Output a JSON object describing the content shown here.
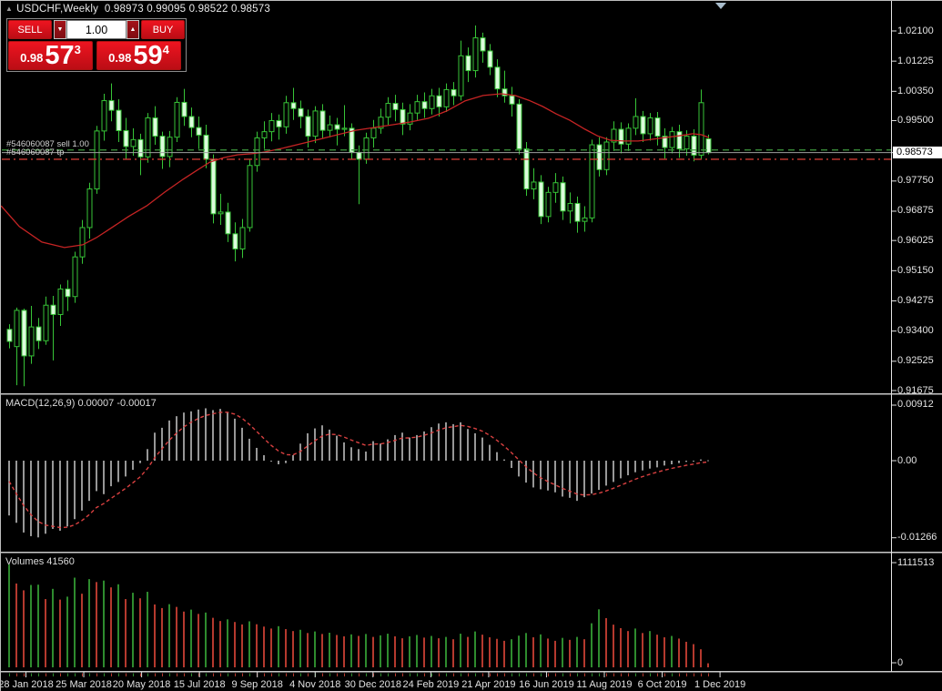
{
  "window": {
    "marker_glyph": "▲",
    "symbol_title": "USDCHF,Weekly",
    "ohlc_line": "0.98973 0.99095 0.98522 0.98573"
  },
  "trade_panel": {
    "sell_label": "SELL",
    "buy_label": "BUY",
    "volume_value": "1.00",
    "vol_down_glyph": "▼",
    "vol_up_glyph": "▲",
    "sell_price": {
      "prefix": "0.98",
      "big": "57",
      "sup": "3"
    },
    "buy_price": {
      "prefix": "0.98",
      "big": "59",
      "sup": "4"
    }
  },
  "order_labels": {
    "sell": "#546060087 sell 1.00",
    "tp": "#546060087 tp"
  },
  "indicator_labels": {
    "macd_name": "MACD(12,26,9)",
    "macd_value": "0.00007",
    "macd_signal": "-0.00017",
    "volumes_name": "Volumes",
    "volumes_value": "41560"
  },
  "axes": {
    "price_labels": [
      "1.02100",
      "1.01225",
      "1.00350",
      "0.99500",
      "0.97750",
      "0.96875",
      "0.96025",
      "0.95150",
      "0.94275",
      "0.93400",
      "0.92525",
      "0.91675"
    ],
    "current_price": "0.98573",
    "macd_labels": [
      "0.00912",
      "0.00",
      "-0.01266"
    ],
    "volume_labels": [
      "1111513",
      "0"
    ],
    "date_labels": [
      "28 Jan 2018",
      "25 Mar 2018",
      "20 May 2018",
      "15 Jul 2018",
      "9 Sep 2018",
      "4 Nov 2018",
      "30 Dec 2018",
      "24 Feb 2019",
      "21 Apr 2019",
      "16 Jun 2019",
      "11 Aug 2019",
      "6 Oct 2019",
      "1 Dec 2019"
    ]
  },
  "colors": {
    "candle_line": "#37c437",
    "bull_fill": "#000000",
    "bear_fill": "#dcfbdc",
    "ma": "#c62424",
    "macd_hist": "#c9c9c9",
    "macd_signal": "#d84040",
    "vol_up": "#2e8b2e",
    "vol_down": "#b5392e",
    "sell_line": "#3f9b3f",
    "tp_line": "#cc3b33",
    "bid_line": "#9e9e9e",
    "separator": "#c9c9c9",
    "axis_text": "#e2e2e2",
    "button_red": "#d6101c",
    "shift_marker": "#a9bccb"
  },
  "chart_data": {
    "type": "candlestick",
    "title": "USDCHF,Weekly",
    "timeframe": "W1",
    "x_range": [
      "14 Jan 2018",
      "1 Dec 2019"
    ],
    "price_axis_shown": [
      0.91675,
      1.021
    ],
    "macd_axis_shown": [
      -0.01266,
      0.00912
    ],
    "volumes_axis_max": 1111513,
    "order_lines": {
      "sell_price": 0.9865,
      "tp_price": 0.9838,
      "bid_price": 0.98573
    },
    "candles": [
      [
        0.9345,
        0.936,
        0.929,
        0.931
      ],
      [
        0.9295,
        0.9408,
        0.9183,
        0.94
      ],
      [
        0.94,
        0.9405,
        0.918,
        0.9268
      ],
      [
        0.9268,
        0.9413,
        0.9245,
        0.9352
      ],
      [
        0.9352,
        0.9378,
        0.9288,
        0.9312
      ],
      [
        0.9312,
        0.944,
        0.93,
        0.9415
      ],
      [
        0.9415,
        0.9442,
        0.9255,
        0.9388
      ],
      [
        0.9388,
        0.9475,
        0.9355,
        0.9462
      ],
      [
        0.9462,
        0.9488,
        0.9398,
        0.944
      ],
      [
        0.944,
        0.957,
        0.9422,
        0.9555
      ],
      [
        0.9555,
        0.9662,
        0.9535,
        0.964
      ],
      [
        0.964,
        0.977,
        0.9608,
        0.9752
      ],
      [
        0.9752,
        0.9935,
        0.9738,
        0.992
      ],
      [
        0.992,
        1.0028,
        0.9892,
        1.0008
      ],
      [
        1.0008,
        1.0058,
        0.9948,
        0.998
      ],
      [
        0.998,
        1.0012,
        0.9888,
        0.9921
      ],
      [
        0.9921,
        0.9958,
        0.9838,
        0.9875
      ],
      [
        0.9875,
        0.9928,
        0.9848,
        0.9895
      ],
      [
        0.9895,
        0.9912,
        0.9792,
        0.9845
      ],
      [
        0.9845,
        0.9972,
        0.9828,
        0.9958
      ],
      [
        0.9958,
        0.9992,
        0.988,
        0.9905
      ],
      [
        0.9905,
        0.9918,
        0.981,
        0.9846
      ],
      [
        0.9846,
        0.992,
        0.9815,
        0.9902
      ],
      [
        0.9902,
        1.0018,
        0.9888,
        1.0003
      ],
      [
        1.0003,
        1.0042,
        0.9935,
        0.9962
      ],
      [
        0.9962,
        0.9988,
        0.9902,
        0.993
      ],
      [
        0.993,
        0.9962,
        0.9868,
        0.9908
      ],
      [
        0.9908,
        0.9938,
        0.9812,
        0.9838
      ],
      [
        0.9838,
        0.9852,
        0.9652,
        0.968
      ],
      [
        0.968,
        0.9738,
        0.9648,
        0.9685
      ],
      [
        0.9685,
        0.9712,
        0.9598,
        0.9622
      ],
      [
        0.9622,
        0.9655,
        0.9542,
        0.9578
      ],
      [
        0.9578,
        0.9665,
        0.9552,
        0.964
      ],
      [
        0.964,
        0.9838,
        0.9628,
        0.982
      ],
      [
        0.982,
        0.9918,
        0.9802,
        0.99
      ],
      [
        0.99,
        0.9948,
        0.9868,
        0.9918
      ],
      [
        0.9918,
        0.9972,
        0.989,
        0.995
      ],
      [
        0.995,
        0.9968,
        0.9895,
        0.9932
      ],
      [
        0.9932,
        1.0022,
        0.9912,
        1.0002
      ],
      [
        1.0002,
        1.0045,
        0.9952,
        0.9985
      ],
      [
        0.9985,
        1.0008,
        0.9928,
        0.9962
      ],
      [
        0.9962,
        0.9982,
        0.9872,
        0.9905
      ],
      [
        0.9905,
        0.9992,
        0.9885,
        0.9978
      ],
      [
        0.9978,
        0.9998,
        0.9898,
        0.9922
      ],
      [
        0.9922,
        0.9965,
        0.9902,
        0.9938
      ],
      [
        0.9938,
        0.9958,
        0.9878,
        0.9925
      ],
      [
        0.9925,
        0.9995,
        0.9905,
        0.9928
      ],
      [
        0.9928,
        0.9942,
        0.9838,
        0.9858
      ],
      [
        0.9858,
        0.9878,
        0.9708,
        0.9838
      ],
      [
        0.9838,
        0.9915,
        0.9825,
        0.99
      ],
      [
        0.99,
        0.9952,
        0.9872,
        0.9928
      ],
      [
        0.9928,
        0.9985,
        0.9912,
        0.996
      ],
      [
        0.996,
        1.0018,
        0.9938,
        1.0
      ],
      [
        1.0,
        1.0025,
        0.9948,
        0.9982
      ],
      [
        0.9982,
        1.0002,
        0.9908,
        0.994
      ],
      [
        0.994,
        0.9998,
        0.9922,
        0.9972
      ],
      [
        0.9972,
        1.0025,
        0.9952,
        1.0005
      ],
      [
        1.0005,
        1.0032,
        0.9958,
        0.9985
      ],
      [
        0.9985,
        1.0042,
        0.9968,
        1.0022
      ],
      [
        1.0022,
        1.0045,
        0.9962,
        0.999
      ],
      [
        0.999,
        1.0058,
        0.9975,
        1.004
      ],
      [
        1.004,
        1.0062,
        0.9995,
        1.0022
      ],
      [
        1.0022,
        1.0182,
        1.0008,
        1.0138
      ],
      [
        1.0138,
        1.0162,
        1.0062,
        1.0095
      ],
      [
        1.0095,
        1.0226,
        1.0075,
        1.019
      ],
      [
        1.019,
        1.0205,
        1.0118,
        1.0152
      ],
      [
        1.0152,
        1.0172,
        1.0082,
        1.0105
      ],
      [
        1.0105,
        1.0128,
        1.0018,
        1.0042
      ],
      [
        1.0042,
        1.0095,
        1.0002,
        1.0022
      ],
      [
        1.0022,
        1.0048,
        0.9962,
        0.9998
      ],
      [
        0.9998,
        1.0012,
        0.9852,
        0.9868
      ],
      [
        0.9868,
        0.9888,
        0.9732,
        0.9752
      ],
      [
        0.9752,
        0.9812,
        0.9722,
        0.9772
      ],
      [
        0.9772,
        0.9792,
        0.965,
        0.9672
      ],
      [
        0.9672,
        0.9758,
        0.9655,
        0.9742
      ],
      [
        0.9742,
        0.9798,
        0.9712,
        0.977
      ],
      [
        0.977,
        0.9788,
        0.9662,
        0.9688
      ],
      [
        0.9688,
        0.9742,
        0.9652,
        0.971
      ],
      [
        0.971,
        0.973,
        0.9625,
        0.9658
      ],
      [
        0.9658,
        0.9702,
        0.9628,
        0.9668
      ],
      [
        0.9668,
        0.9895,
        0.9655,
        0.988
      ],
      [
        0.988,
        0.9902,
        0.9788,
        0.9808
      ],
      [
        0.9808,
        0.9902,
        0.9792,
        0.9888
      ],
      [
        0.9888,
        0.9948,
        0.9862,
        0.9925
      ],
      [
        0.9925,
        0.9945,
        0.9855,
        0.9882
      ],
      [
        0.9882,
        0.9942,
        0.9862,
        0.9928
      ],
      [
        0.9928,
        1.0015,
        0.9908,
        0.9962
      ],
      [
        0.9962,
        0.9978,
        0.9888,
        0.9912
      ],
      [
        0.9912,
        0.9972,
        0.9892,
        0.9958
      ],
      [
        0.9958,
        0.9975,
        0.9878,
        0.9905
      ],
      [
        0.9905,
        0.9928,
        0.984,
        0.9872
      ],
      [
        0.9872,
        0.9932,
        0.9855,
        0.9918
      ],
      [
        0.9918,
        0.9938,
        0.9842,
        0.9868
      ],
      [
        0.9868,
        0.9922,
        0.9848,
        0.9905
      ],
      [
        0.9905,
        0.9925,
        0.9832,
        0.985
      ],
      [
        0.985,
        1.004,
        0.9838,
        1.0002
      ],
      [
        0.98973,
        0.99095,
        0.98522,
        0.98573
      ]
    ],
    "ma_line": [
      [
        -1.1,
        0.9703
      ],
      [
        1.4,
        0.9643
      ],
      [
        4.5,
        0.9598
      ],
      [
        7.6,
        0.9582
      ],
      [
        10.1,
        0.959
      ],
      [
        12,
        0.9611
      ],
      [
        13.9,
        0.9637
      ],
      [
        16.4,
        0.9672
      ],
      [
        18.9,
        0.9703
      ],
      [
        21.4,
        0.9743
      ],
      [
        23.9,
        0.978
      ],
      [
        25.8,
        0.9806
      ],
      [
        27.6,
        0.983
      ],
      [
        29.5,
        0.9843
      ],
      [
        31.4,
        0.9851
      ],
      [
        33.3,
        0.9854
      ],
      [
        35.1,
        0.9859
      ],
      [
        37.6,
        0.987
      ],
      [
        40.1,
        0.9883
      ],
      [
        42.6,
        0.9896
      ],
      [
        45.1,
        0.9909
      ],
      [
        47.6,
        0.9922
      ],
      [
        50.1,
        0.993
      ],
      [
        52.6,
        0.9938
      ],
      [
        55.1,
        0.9946
      ],
      [
        57.6,
        0.9957
      ],
      [
        60.1,
        0.9978
      ],
      [
        62.6,
        1.0007
      ],
      [
        65.1,
        1.0023
      ],
      [
        67.6,
        1.0028
      ],
      [
        69.5,
        1.0023
      ],
      [
        71.4,
        1.0009
      ],
      [
        73.3,
        0.9991
      ],
      [
        75.1,
        0.997
      ],
      [
        77,
        0.9951
      ],
      [
        79.1,
        0.9925
      ],
      [
        80.8,
        0.9906
      ],
      [
        82.6,
        0.9893
      ],
      [
        84.5,
        0.9891
      ],
      [
        86.4,
        0.9891
      ],
      [
        88.3,
        0.9896
      ],
      [
        90.1,
        0.9901
      ],
      [
        92,
        0.9906
      ],
      [
        93.9,
        0.9912
      ],
      [
        95.1,
        0.9909
      ],
      [
        96.1,
        0.9901
      ]
    ],
    "macd_hist": [
      -0.009,
      -0.0102,
      -0.0118,
      -0.0124,
      -0.0126,
      -0.012,
      -0.0112,
      -0.0115,
      -0.0108,
      -0.0096,
      -0.0082,
      -0.0066,
      -0.005,
      -0.0055,
      -0.0042,
      -0.0035,
      -0.0026,
      -0.0015,
      -0.0004,
      0.0019,
      0.0046,
      0.0054,
      0.0066,
      0.0073,
      0.0079,
      0.0081,
      0.0084,
      0.0086,
      0.0083,
      0.0085,
      0.008,
      0.0069,
      0.0054,
      0.0036,
      0.0021,
      0.0009,
      -0.0001,
      -0.0006,
      -0.0004,
      0.0009,
      0.0028,
      0.0045,
      0.0053,
      0.0058,
      0.0051,
      0.0041,
      0.003,
      0.0022,
      0.0019,
      0.0015,
      0.0032,
      0.0028,
      0.0035,
      0.0042,
      0.0046,
      0.0038,
      0.0042,
      0.0048,
      0.0055,
      0.0061,
      0.0063,
      0.006,
      0.0063,
      0.0052,
      0.0045,
      0.0038,
      0.0026,
      0.0014,
      0.0002,
      -0.0012,
      -0.0026,
      -0.0036,
      -0.0044,
      -0.0047,
      -0.0049,
      -0.0052,
      -0.0059,
      -0.0061,
      -0.0066,
      -0.006,
      -0.0054,
      -0.0048,
      -0.0041,
      -0.0035,
      -0.0029,
      -0.0024,
      -0.0019,
      -0.0016,
      -0.0013,
      -0.0011,
      -0.0008,
      -0.0006,
      -0.0004,
      -0.0002,
      -0.0001,
      0.0002,
      7e-05
    ],
    "volumes": [
      1055000,
      860000,
      790000,
      845000,
      848000,
      700000,
      805000,
      695000,
      725000,
      920000,
      755000,
      905000,
      875000,
      890000,
      820000,
      852000,
      700000,
      765000,
      708000,
      775000,
      645000,
      608000,
      648000,
      620000,
      572000,
      592000,
      548000,
      562000,
      508000,
      475000,
      492000,
      465000,
      440000,
      472000,
      442000,
      418000,
      398000,
      422000,
      392000,
      372000,
      385000,
      352000,
      368000,
      342000,
      355000,
      332000,
      318000,
      338000,
      322000,
      342000,
      312000,
      328000,
      345000,
      318000,
      298000,
      318000,
      332000,
      305000,
      322000,
      298000,
      312000,
      288000,
      345000,
      312000,
      368000,
      335000,
      308000,
      292000,
      272000,
      288000,
      325000,
      352000,
      308000,
      338000,
      295000,
      272000,
      302000,
      282000,
      312000,
      288000,
      452000,
      595000,
      505000,
      438000,
      402000,
      372000,
      398000,
      352000,
      372000,
      335000,
      308000,
      322000,
      295000,
      262000,
      238000,
      185000,
      41560
    ]
  }
}
